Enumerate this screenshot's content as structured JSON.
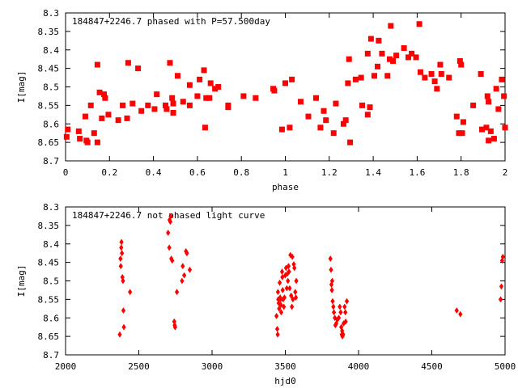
{
  "chart_data": [
    {
      "type": "scatter",
      "title": "184847+2246.7 phased with P=57.500day",
      "xlabel": "phase",
      "ylabel": "I[mag]",
      "xlim": [
        0,
        2
      ],
      "ylim": [
        8.7,
        8.3
      ],
      "y_inverted": true,
      "grid": false,
      "marker": "asterisk",
      "color": "#ff0000",
      "x_ticks": [
        "0",
        "0.2",
        "0.4",
        "0.6",
        "0.8",
        "1",
        "1.2",
        "1.4",
        "1.6",
        "1.8",
        "2"
      ],
      "y_ticks": [
        "8.3",
        "8.35",
        "8.4",
        "8.45",
        "8.5",
        "8.55",
        "8.6",
        "8.65",
        "8.7"
      ],
      "points": [
        [
          0.005,
          8.635
        ],
        [
          0.01,
          8.615
        ],
        [
          0.06,
          8.62
        ],
        [
          0.065,
          8.64
        ],
        [
          0.09,
          8.58
        ],
        [
          0.095,
          8.645
        ],
        [
          0.1,
          8.65
        ],
        [
          0.115,
          8.55
        ],
        [
          0.13,
          8.625
        ],
        [
          0.145,
          8.44
        ],
        [
          0.145,
          8.65
        ],
        [
          0.155,
          8.515
        ],
        [
          0.165,
          8.585
        ],
        [
          0.175,
          8.52
        ],
        [
          0.18,
          8.53
        ],
        [
          0.195,
          8.575
        ],
        [
          0.24,
          8.59
        ],
        [
          0.26,
          8.55
        ],
        [
          0.28,
          8.585
        ],
        [
          0.285,
          8.435
        ],
        [
          0.305,
          8.545
        ],
        [
          0.33,
          8.45
        ],
        [
          0.345,
          8.565
        ],
        [
          0.375,
          8.55
        ],
        [
          0.405,
          8.56
        ],
        [
          0.415,
          8.52
        ],
        [
          0.455,
          8.55
        ],
        [
          0.46,
          8.56
        ],
        [
          0.475,
          8.435
        ],
        [
          0.485,
          8.53
        ],
        [
          0.49,
          8.545
        ],
        [
          0.49,
          8.57
        ],
        [
          0.51,
          8.47
        ],
        [
          0.535,
          8.54
        ],
        [
          0.565,
          8.495
        ],
        [
          0.565,
          8.55
        ],
        [
          0.6,
          8.525
        ],
        [
          0.61,
          8.48
        ],
        [
          0.63,
          8.455
        ],
        [
          0.635,
          8.61
        ],
        [
          0.64,
          8.53
        ],
        [
          0.655,
          8.53
        ],
        [
          0.66,
          8.49
        ],
        [
          0.68,
          8.505
        ],
        [
          0.695,
          8.5
        ],
        [
          0.74,
          8.55
        ],
        [
          0.74,
          8.555
        ],
        [
          0.81,
          8.525
        ],
        [
          0.865,
          8.53
        ],
        [
          0.945,
          8.505
        ],
        [
          0.95,
          8.51
        ],
        [
          0.985,
          8.615
        ],
        [
          1.0,
          8.49
        ],
        [
          1.02,
          8.61
        ],
        [
          1.03,
          8.48
        ],
        [
          1.07,
          8.54
        ],
        [
          1.105,
          8.58
        ],
        [
          1.14,
          8.53
        ],
        [
          1.16,
          8.61
        ],
        [
          1.175,
          8.565
        ],
        [
          1.185,
          8.59
        ],
        [
          1.22,
          8.625
        ],
        [
          1.23,
          8.545
        ],
        [
          1.265,
          8.6
        ],
        [
          1.275,
          8.59
        ],
        [
          1.285,
          8.49
        ],
        [
          1.29,
          8.425
        ],
        [
          1.295,
          8.65
        ],
        [
          1.32,
          8.48
        ],
        [
          1.345,
          8.475
        ],
        [
          1.35,
          8.55
        ],
        [
          1.375,
          8.41
        ],
        [
          1.375,
          8.575
        ],
        [
          1.385,
          8.555
        ],
        [
          1.39,
          8.37
        ],
        [
          1.405,
          8.47
        ],
        [
          1.42,
          8.445
        ],
        [
          1.425,
          8.375
        ],
        [
          1.44,
          8.41
        ],
        [
          1.465,
          8.47
        ],
        [
          1.475,
          8.425
        ],
        [
          1.48,
          8.335
        ],
        [
          1.49,
          8.43
        ],
        [
          1.505,
          8.415
        ],
        [
          1.54,
          8.395
        ],
        [
          1.56,
          8.42
        ],
        [
          1.575,
          8.41
        ],
        [
          1.595,
          8.42
        ],
        [
          1.61,
          8.33
        ],
        [
          1.615,
          8.46
        ],
        [
          1.635,
          8.475
        ],
        [
          1.665,
          8.465
        ],
        [
          1.68,
          8.485
        ],
        [
          1.69,
          8.505
        ],
        [
          1.705,
          8.44
        ],
        [
          1.71,
          8.465
        ],
        [
          1.745,
          8.475
        ],
        [
          1.78,
          8.58
        ],
        [
          1.79,
          8.625
        ],
        [
          1.795,
          8.43
        ],
        [
          1.8,
          8.44
        ],
        [
          1.805,
          8.625
        ],
        [
          1.81,
          8.595
        ],
        [
          1.855,
          8.55
        ],
        [
          1.89,
          8.465
        ],
        [
          1.895,
          8.615
        ],
        [
          1.915,
          8.61
        ],
        [
          1.92,
          8.525
        ],
        [
          1.925,
          8.54
        ],
        [
          1.925,
          8.645
        ],
        [
          1.935,
          8.62
        ],
        [
          1.95,
          8.64
        ],
        [
          1.96,
          8.505
        ],
        [
          1.97,
          8.56
        ],
        [
          1.985,
          8.48
        ],
        [
          1.995,
          8.525
        ],
        [
          2.0,
          8.61
        ]
      ]
    },
    {
      "type": "scatter",
      "title": "184847+2246.7 not phased light curve",
      "xlabel": "hjd0",
      "ylabel": "I[mag]",
      "xlim": [
        2000,
        5000
      ],
      "ylim": [
        8.7,
        8.3
      ],
      "y_inverted": true,
      "grid": false,
      "marker": "diamond",
      "color": "#ff0000",
      "x_ticks": [
        "2000",
        "2500",
        "3000",
        "3500",
        "4000",
        "4500",
        "5000"
      ],
      "y_ticks": [
        "8.3",
        "8.35",
        "8.4",
        "8.45",
        "8.5",
        "8.55",
        "8.6",
        "8.65",
        "8.7"
      ],
      "points": [
        [
          2370,
          8.645
        ],
        [
          2375,
          8.44
        ],
        [
          2377,
          8.46
        ],
        [
          2380,
          8.41
        ],
        [
          2382,
          8.395
        ],
        [
          2385,
          8.425
        ],
        [
          2388,
          8.49
        ],
        [
          2392,
          8.5
        ],
        [
          2395,
          8.58
        ],
        [
          2398,
          8.625
        ],
        [
          2440,
          8.53
        ],
        [
          2700,
          8.37
        ],
        [
          2708,
          8.41
        ],
        [
          2710,
          8.335
        ],
        [
          2715,
          8.34
        ],
        [
          2718,
          8.325
        ],
        [
          2722,
          8.44
        ],
        [
          2728,
          8.445
        ],
        [
          2742,
          8.61
        ],
        [
          2745,
          8.62
        ],
        [
          2748,
          8.625
        ],
        [
          2760,
          8.53
        ],
        [
          2795,
          8.5
        ],
        [
          2800,
          8.46
        ],
        [
          2810,
          8.485
        ],
        [
          2822,
          8.42
        ],
        [
          2828,
          8.425
        ],
        [
          2848,
          8.47
        ],
        [
          3440,
          8.595
        ],
        [
          3445,
          8.63
        ],
        [
          3448,
          8.645
        ],
        [
          3450,
          8.53
        ],
        [
          3452,
          8.55
        ],
        [
          3455,
          8.56
        ],
        [
          3458,
          8.575
        ],
        [
          3462,
          8.505
        ],
        [
          3465,
          8.545
        ],
        [
          3468,
          8.55
        ],
        [
          3470,
          8.565
        ],
        [
          3472,
          8.585
        ],
        [
          3478,
          8.475
        ],
        [
          3480,
          8.49
        ],
        [
          3482,
          8.525
        ],
        [
          3485,
          8.55
        ],
        [
          3490,
          8.57
        ],
        [
          3494,
          8.545
        ],
        [
          3500,
          8.485
        ],
        [
          3505,
          8.465
        ],
        [
          3510,
          8.52
        ],
        [
          3515,
          8.48
        ],
        [
          3518,
          8.5
        ],
        [
          3522,
          8.46
        ],
        [
          3525,
          8.475
        ],
        [
          3530,
          8.52
        ],
        [
          3535,
          8.43
        ],
        [
          3540,
          8.54
        ],
        [
          3545,
          8.57
        ],
        [
          3548,
          8.435
        ],
        [
          3552,
          8.55
        ],
        [
          3558,
          8.455
        ],
        [
          3562,
          8.465
        ],
        [
          3568,
          8.53
        ],
        [
          3572,
          8.545
        ],
        [
          3575,
          8.5
        ],
        [
          3808,
          8.44
        ],
        [
          3812,
          8.47
        ],
        [
          3815,
          8.51
        ],
        [
          3818,
          8.525
        ],
        [
          3820,
          8.5
        ],
        [
          3823,
          8.555
        ],
        [
          3828,
          8.57
        ],
        [
          3832,
          8.585
        ],
        [
          3838,
          8.6
        ],
        [
          3842,
          8.62
        ],
        [
          3848,
          8.615
        ],
        [
          3855,
          8.605
        ],
        [
          3865,
          8.6
        ],
        [
          3872,
          8.57
        ],
        [
          3878,
          8.585
        ],
        [
          3882,
          8.625
        ],
        [
          3885,
          8.645
        ],
        [
          3888,
          8.635
        ],
        [
          3890,
          8.65
        ],
        [
          3895,
          8.645
        ],
        [
          3898,
          8.615
        ],
        [
          3905,
          8.57
        ],
        [
          3910,
          8.585
        ],
        [
          3912,
          8.61
        ],
        [
          3920,
          8.555
        ],
        [
          4670,
          8.58
        ],
        [
          4695,
          8.59
        ],
        [
          4970,
          8.55
        ],
        [
          4975,
          8.515
        ],
        [
          4980,
          8.445
        ],
        [
          4985,
          8.435
        ]
      ]
    }
  ]
}
